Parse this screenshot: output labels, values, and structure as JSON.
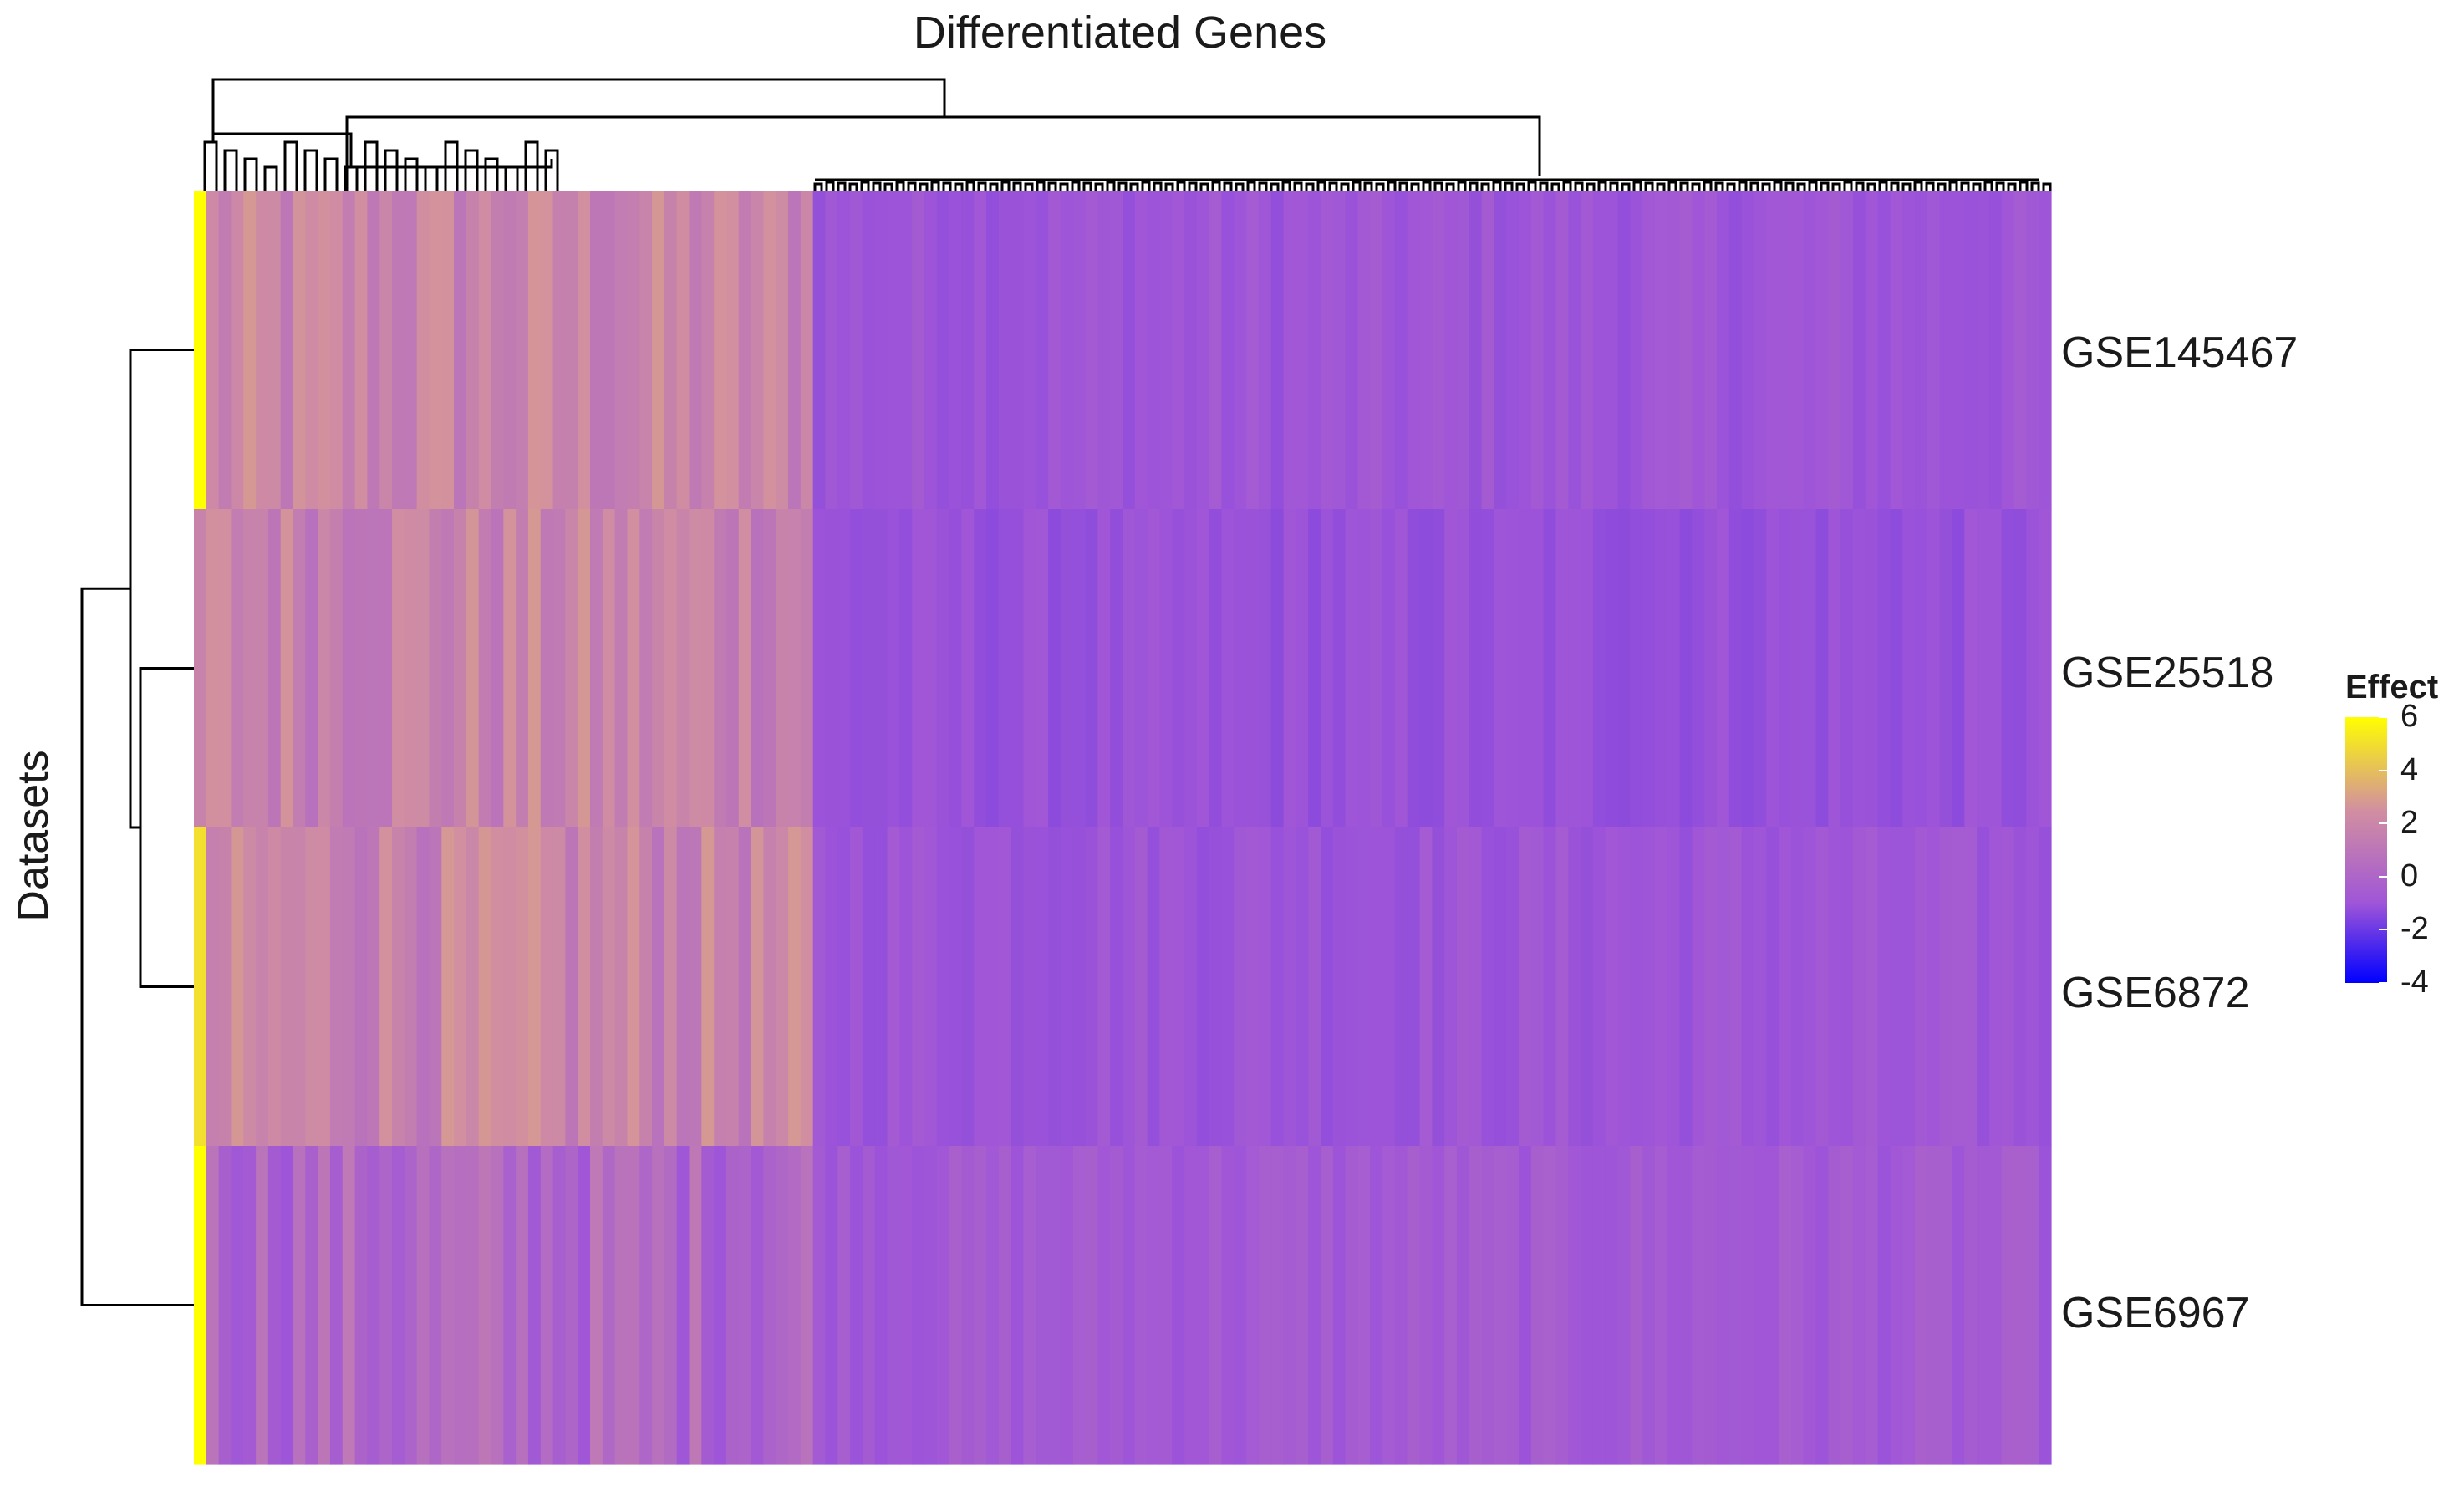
{
  "chart_data": {
    "type": "heatmap",
    "title": "Differentiated Genes",
    "xlabel": "",
    "ylabel": "Datasets",
    "rows": [
      "GSE145467",
      "GSE25518",
      "GSE6872",
      "GSE6967"
    ],
    "row_dendrogram": [
      [
        "GSE25518",
        "GSE6872"
      ],
      "GSE145467",
      "GSE6967"
    ],
    "column_dendrogram": true,
    "n_genes_approx": 150,
    "blocks": [
      {
        "columns": "upregulated cluster (left ~33%)",
        "GSE145467": 2.0,
        "GSE25518": 2.0,
        "GSE6872": 2.0,
        "GSE6967": 0.8
      },
      {
        "columns": "remaining genes (right ~67%)",
        "GSE145467": 0.0,
        "GSE25518": -0.2,
        "GSE6872": 0.0,
        "GSE6967": 0.2
      }
    ],
    "first_column_values": {
      "GSE145467": 6,
      "GSE25518": 2,
      "GSE6872": 5,
      "GSE6967": 6
    },
    "colorscale": {
      "min": -4,
      "max": 6,
      "colors": [
        "#0000ff",
        "#9f55d8",
        "#d28fa0",
        "#ffff00"
      ]
    },
    "legend": {
      "title": "Effect",
      "ticks": [
        "6",
        "4",
        "2",
        "0",
        "-2",
        "-4"
      ],
      "placement": "right"
    }
  }
}
